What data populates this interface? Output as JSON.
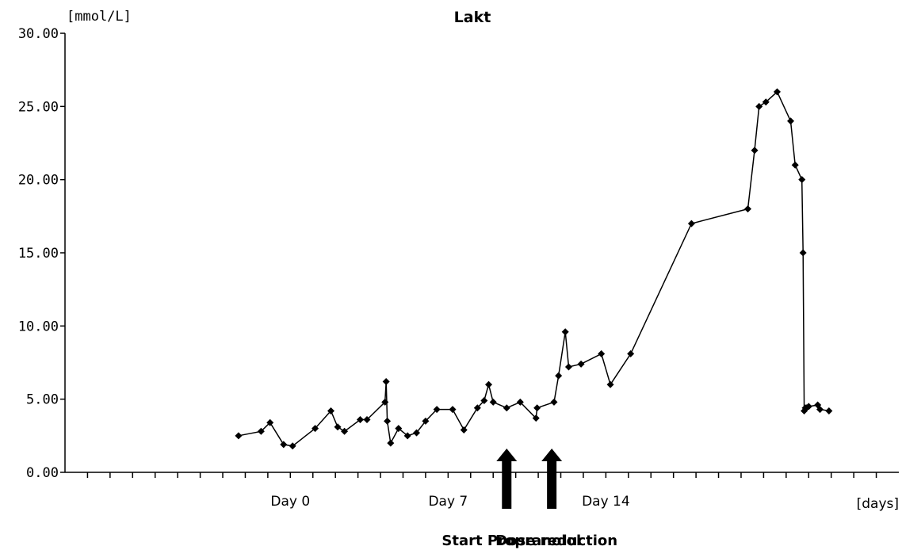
{
  "chart_data": {
    "type": "line",
    "title": "Lakt",
    "y_unit_label": "[mmol/L]",
    "x_unit_label": "[days]",
    "ylim": [
      0,
      30
    ],
    "xlim": [
      -10,
      27
    ],
    "y_ticks": [
      "0.00",
      "5.00",
      "10.00",
      "15.00",
      "20.00",
      "25.00",
      "30.00"
    ],
    "y_tick_values": [
      0,
      5,
      10,
      15,
      20,
      25,
      30
    ],
    "x_minor_tick_step": 1,
    "x_day_labels": [
      {
        "x": 0,
        "label": "Day 0"
      },
      {
        "x": 7,
        "label": "Day 7"
      },
      {
        "x": 14,
        "label": "Day 14"
      }
    ],
    "annotations": [
      {
        "x": 9.6,
        "label": "Start Propranolol"
      },
      {
        "x": 11.6,
        "label": "Dose reduction"
      }
    ],
    "grid": false,
    "legend": "none",
    "series": [
      {
        "values_x": [
          -2.3,
          -1.3,
          -0.9,
          -0.3,
          0.1,
          1.1,
          1.8,
          2.1,
          2.4,
          3.1,
          3.4,
          4.2,
          4.25,
          4.3,
          4.45,
          4.8,
          5.2,
          5.6,
          6.0,
          6.5,
          7.2,
          7.7,
          8.3,
          8.6,
          8.8,
          9.0,
          9.6,
          10.2,
          10.9,
          10.95,
          11.7,
          11.9,
          12.2,
          12.35,
          12.9,
          13.8,
          14.2,
          15.1,
          17.8,
          20.3,
          20.6,
          20.8,
          21.1,
          21.6,
          22.2,
          22.4,
          22.7,
          22.75,
          22.8,
          22.85,
          22.9,
          23.0,
          23.4,
          23.5,
          23.9
        ],
        "values": [
          2.5,
          2.8,
          3.4,
          1.9,
          1.8,
          3.0,
          4.2,
          3.1,
          2.8,
          3.6,
          3.6,
          4.8,
          6.2,
          3.5,
          2.0,
          3.0,
          2.5,
          2.7,
          3.5,
          4.3,
          4.3,
          2.9,
          4.4,
          4.9,
          6.0,
          4.8,
          4.4,
          4.8,
          3.7,
          4.4,
          4.8,
          6.6,
          9.6,
          7.2,
          7.4,
          8.1,
          6.0,
          8.1,
          17.0,
          18.0,
          22.0,
          25.0,
          25.3,
          26.0,
          24.0,
          21.0,
          20.0,
          15.0,
          4.2,
          4.4,
          4.4,
          4.5,
          4.6,
          4.3,
          4.2
        ]
      }
    ]
  }
}
